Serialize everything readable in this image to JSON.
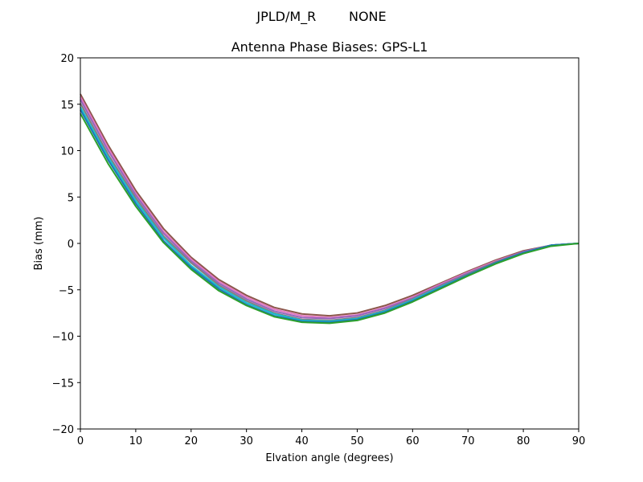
{
  "suptitle": "JPLD/M_R        NONE",
  "chart_data": {
    "type": "line",
    "title": "Antenna Phase Biases: GPS-L1",
    "xlabel": "Elvation angle (degrees)",
    "ylabel": "Bias (mm)",
    "xlim": [
      0,
      90
    ],
    "ylim": [
      -20,
      20
    ],
    "xticks": [
      0,
      10,
      20,
      30,
      40,
      50,
      60,
      70,
      80,
      90
    ],
    "yticks": [
      -20,
      -15,
      -10,
      -5,
      0,
      5,
      10,
      15,
      20
    ],
    "xtick_labels": [
      "0",
      "10",
      "20",
      "30",
      "40",
      "50",
      "60",
      "70",
      "80",
      "90"
    ],
    "ytick_labels": [
      "−20",
      "−15",
      "−10",
      "−5",
      "0",
      "5",
      "10",
      "15",
      "20"
    ],
    "grid": false,
    "legend": "none",
    "x": [
      0,
      5,
      10,
      15,
      20,
      25,
      30,
      35,
      40,
      45,
      50,
      55,
      60,
      65,
      70,
      75,
      80,
      85,
      90
    ],
    "series": [
      {
        "color": "#8c564b",
        "values": [
          16.1,
          10.6,
          5.7,
          1.6,
          -1.5,
          -3.9,
          -5.6,
          -6.9,
          -7.6,
          -7.8,
          -7.5,
          -6.7,
          -5.6,
          -4.3,
          -3.0,
          -1.8,
          -0.8,
          -0.2,
          0.0
        ]
      },
      {
        "color": "#e377c2",
        "values": [
          15.8,
          10.3,
          5.4,
          1.3,
          -1.7,
          -4.1,
          -5.8,
          -7.1,
          -7.8,
          -8.0,
          -7.7,
          -6.9,
          -5.8,
          -4.4,
          -3.1,
          -1.9,
          -0.9,
          -0.2,
          0.0
        ]
      },
      {
        "color": "#9467bd",
        "values": [
          15.5,
          10.0,
          5.2,
          1.1,
          -1.9,
          -4.3,
          -6.0,
          -7.3,
          -8.0,
          -8.1,
          -7.8,
          -7.0,
          -5.9,
          -4.5,
          -3.2,
          -2.0,
          -0.9,
          -0.2,
          0.0
        ]
      },
      {
        "color": "#7f7f7f",
        "values": [
          15.1,
          9.6,
          4.9,
          0.8,
          -2.1,
          -4.5,
          -6.2,
          -7.5,
          -8.2,
          -8.3,
          -8.0,
          -7.2,
          -6.0,
          -4.6,
          -3.3,
          -2.0,
          -1.0,
          -0.2,
          0.0
        ]
      },
      {
        "color": "#17becf",
        "values": [
          14.7,
          9.3,
          4.6,
          0.6,
          -2.4,
          -4.7,
          -6.4,
          -7.6,
          -8.3,
          -8.4,
          -8.1,
          -7.3,
          -6.1,
          -4.7,
          -3.4,
          -2.1,
          -1.0,
          -0.2,
          0.0
        ]
      },
      {
        "color": "#1f77b4",
        "values": [
          14.4,
          9.0,
          4.3,
          0.3,
          -2.6,
          -4.9,
          -6.6,
          -7.8,
          -8.4,
          -8.5,
          -8.2,
          -7.4,
          -6.2,
          -4.8,
          -3.4,
          -2.1,
          -1.0,
          -0.2,
          0.0
        ]
      },
      {
        "color": "#2ca02c",
        "values": [
          14.0,
          8.6,
          4.0,
          0.1,
          -2.8,
          -5.1,
          -6.7,
          -7.9,
          -8.5,
          -8.6,
          -8.3,
          -7.5,
          -6.3,
          -4.9,
          -3.5,
          -2.2,
          -1.1,
          -0.3,
          0.0
        ]
      }
    ]
  }
}
